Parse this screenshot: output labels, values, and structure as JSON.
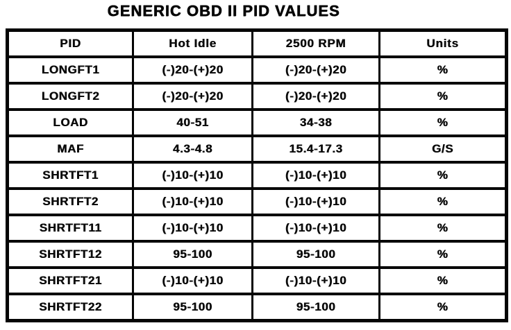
{
  "title": "GENERIC OBD II PID VALUES",
  "table": {
    "columns": [
      "PID",
      "Hot Idle",
      "2500 RPM",
      "Units"
    ],
    "rows": [
      [
        "LONGFT1",
        "(-)20-(+)20",
        "(-)20-(+)20",
        "%"
      ],
      [
        "LONGFT2",
        "(-)20-(+)20",
        "(-)20-(+)20",
        "%"
      ],
      [
        "LOAD",
        "40-51",
        "34-38",
        "%"
      ],
      [
        "MAF",
        "4.3-4.8",
        "15.4-17.3",
        "G/S"
      ],
      [
        "SHRTFT1",
        "(-)10-(+)10",
        "(-)10-(+)10",
        "%"
      ],
      [
        "SHRTFT2",
        "(-)10-(+)10",
        "(-)10-(+)10",
        "%"
      ],
      [
        "SHRTFT11",
        "(-)10-(+)10",
        "(-)10-(+)10",
        "%"
      ],
      [
        "SHRTFT12",
        "95-100",
        "95-100",
        "%"
      ],
      [
        "SHRTFT21",
        "(-)10-(+)10",
        "(-)10-(+)10",
        "%"
      ],
      [
        "SHRTFT22",
        "95-100",
        "95-100",
        "%"
      ]
    ]
  }
}
